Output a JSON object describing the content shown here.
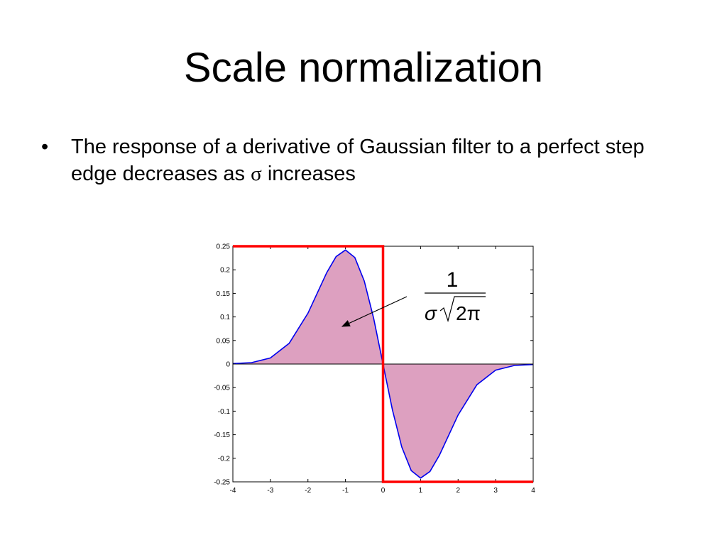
{
  "slide": {
    "title": "Scale normalization",
    "bullets": [
      {
        "mark": "•",
        "text_before": "The response of a derivative of Gaussian filter to a perfect step edge decreases as ",
        "symbol": "σ",
        "text_after": " increases"
      }
    ]
  },
  "annotation": {
    "numerator": "1",
    "denominator_sigma": "σ",
    "denominator_rest": "2π"
  },
  "colors": {
    "step": "#ff0000",
    "curve": "#0000ee",
    "fill": "#dda0c0",
    "axis": "#000000"
  },
  "chart_data": {
    "type": "line",
    "title": "",
    "xlabel": "",
    "ylabel": "",
    "xlim": [
      -4,
      4
    ],
    "ylim": [
      -0.25,
      0.25
    ],
    "x_ticks": [
      -4,
      -3,
      -2,
      -1,
      0,
      1,
      2,
      3,
      4
    ],
    "y_ticks": [
      0.25,
      0.2,
      0.15,
      0.1,
      0.05,
      0,
      -0.05,
      -0.1,
      -0.15,
      -0.2,
      -0.25
    ],
    "x_tick_labels": [
      "-4",
      "-3",
      "-2",
      "-1",
      "0",
      "1",
      "2",
      "3",
      "4"
    ],
    "y_tick_labels": [
      "0.25",
      "0.2",
      "0.15",
      "0.1",
      "0.05",
      "0",
      "-0.05",
      "-0.1",
      "-0.15",
      "-0.2",
      "-0.25"
    ],
    "grid": false,
    "series": [
      {
        "x": [
          -4,
          -3.5,
          -3,
          -2.5,
          -2,
          -1.5,
          -1.25,
          -1,
          -0.75,
          -0.5,
          -0.25,
          0,
          0.25,
          0.5,
          0.75,
          1,
          1.25,
          1.5,
          2,
          2.5,
          3,
          3.5,
          4
        ],
        "y": [
          0.001,
          0.003,
          0.013,
          0.044,
          0.108,
          0.194,
          0.228,
          0.242,
          0.226,
          0.176,
          0.097,
          0,
          -0.097,
          -0.176,
          -0.226,
          -0.242,
          -0.228,
          -0.194,
          -0.108,
          -0.044,
          -0.013,
          -0.003,
          -0.001
        ]
      },
      {
        "x": [
          -4,
          0,
          0,
          4
        ],
        "y": [
          0.25,
          0.25,
          -0.25,
          -0.25
        ]
      }
    ]
  }
}
